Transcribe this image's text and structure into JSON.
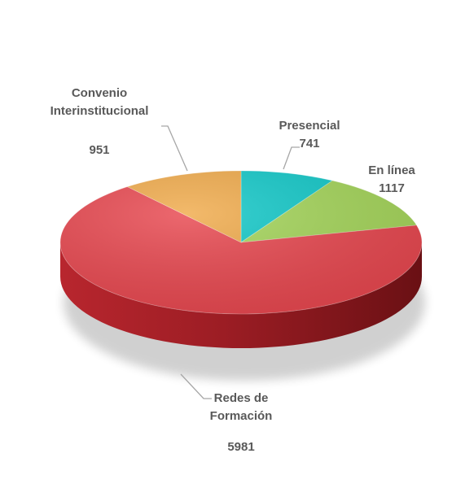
{
  "chart_data": {
    "type": "pie",
    "style": "3d-pie",
    "legend": "none",
    "slices": [
      {
        "name": "Presencial",
        "label_lines": [
          "Presencial"
        ],
        "value": 741,
        "value_label": "741",
        "color": "#12c9c9"
      },
      {
        "name": "En línea",
        "label_lines": [
          "En línea"
        ],
        "value": 1117,
        "value_label": "1117",
        "color": "#a5d65a"
      },
      {
        "name": "Redes de Formación",
        "label_lines": [
          "Redes de",
          "Formación"
        ],
        "value": 5981,
        "value_label": "5981",
        "color": "#e8474f"
      },
      {
        "name": "Convenio Interinstitucional",
        "label_lines": [
          "Convenio",
          "Interinstitucional"
        ],
        "value": 951,
        "value_label": "951",
        "color": "#f0aa4a"
      }
    ]
  }
}
